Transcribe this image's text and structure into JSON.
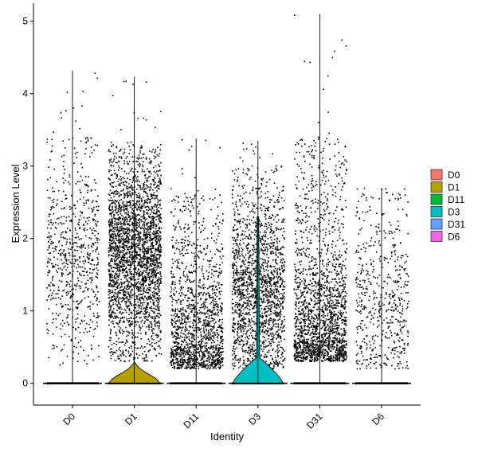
{
  "chart_data": {
    "type": "violin",
    "xlabel": "Identity",
    "ylabel": "Expression Level",
    "categories": [
      "D0",
      "D1",
      "D11",
      "D3",
      "D31",
      "D6"
    ],
    "yticks": [
      0,
      1,
      2,
      3,
      4,
      5
    ],
    "ylim": [
      -0.3,
      5.25
    ],
    "legend": {
      "position": "right",
      "items": [
        {
          "label": "D0",
          "color": "#F8766D"
        },
        {
          "label": "D1",
          "color": "#B79F00"
        },
        {
          "label": "D11",
          "color": "#00BA38"
        },
        {
          "label": "D3",
          "color": "#00BFC4"
        },
        {
          "label": "D31",
          "color": "#619CFF"
        },
        {
          "label": "D6",
          "color": "#F564E3"
        }
      ]
    },
    "series": [
      {
        "name": "D0",
        "color": "#F8766D",
        "max": 4.32,
        "violin_height": 0.0,
        "violin_halfwidth": 0.0,
        "points": 700,
        "band_low": 0.25,
        "band_high": 3.4,
        "density_center": 1.7
      },
      {
        "name": "D1",
        "color": "#B79F00",
        "max": 4.23,
        "violin_height": 0.3,
        "violin_halfwidth": 0.9,
        "points": 2800,
        "band_low": 0.3,
        "band_high": 3.3,
        "density_center": 1.8
      },
      {
        "name": "D11",
        "color": "#00BA38",
        "max": 3.38,
        "violin_height": 0.0,
        "violin_halfwidth": 0.0,
        "points": 1500,
        "band_low": 0.2,
        "band_high": 2.6,
        "density_center": 0.6
      },
      {
        "name": "D3",
        "color": "#00BFC4",
        "max": 3.35,
        "violin_height": 2.3,
        "violin_halfwidth": 0.9,
        "points": 1800,
        "band_low": 0.2,
        "band_high": 3.0,
        "density_center": 1.2
      },
      {
        "name": "D31",
        "color": "#619CFF",
        "max": 5.1,
        "violin_height": 0.0,
        "violin_halfwidth": 0.0,
        "points": 1900,
        "band_low": 0.3,
        "band_high": 3.4,
        "density_center": 0.7
      },
      {
        "name": "D6",
        "color": "#F564E3",
        "max": 2.7,
        "violin_height": 0.0,
        "violin_halfwidth": 0.0,
        "points": 550,
        "band_low": 0.2,
        "band_high": 2.6,
        "density_center": 1.0
      }
    ]
  }
}
